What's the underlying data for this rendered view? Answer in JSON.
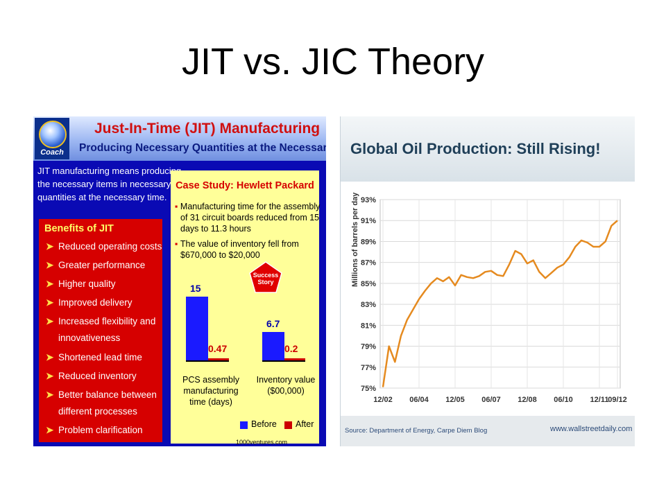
{
  "slide": {
    "title": "JIT vs. JIC Theory"
  },
  "jit": {
    "logo_label": "Coach",
    "title": "Just-In-Time (JIT) Manufacturing",
    "subtitle": "Producing Necessary Quantities at the Necessary Time",
    "definition": [
      "JIT manufacturing means producing",
      "the necessary items in necessary",
      "quantities at the necessary time."
    ],
    "benefits_title": "Benefits of JIT",
    "benefits": [
      "Reduced operating costs",
      "Greater performance",
      "Higher quality",
      "Improved delivery",
      "Increased flexibility and",
      "innovativeness",
      "Shortened lead time",
      "Reduced inventory",
      "Better balance between",
      "different processes",
      "Problem clarification"
    ],
    "case": {
      "title": "Case Study: Hewlett Packard",
      "bullet1": [
        "Manufacturing time for the assembly",
        "of 31 circuit boards reduced from 15",
        "days to 11.3 hours"
      ],
      "bullet2": [
        "The value of inventory fell from",
        "$670,000 to $20,000"
      ],
      "badge": [
        "Success",
        "Story"
      ]
    },
    "bars": [
      {
        "before_label": "15",
        "before": 15,
        "after_label": "0.47",
        "after": 0.47,
        "caption": [
          "PCS assembly",
          "manufacturing",
          "time (days)"
        ]
      },
      {
        "before_label": "6.7",
        "before": 6.7,
        "after_label": "0.2",
        "after": 0.2,
        "caption": [
          "Inventory value",
          "($00,000)"
        ]
      }
    ],
    "legend": {
      "before": "Before",
      "after": "After"
    },
    "colors": {
      "before": "#1a1aff",
      "after": "#cc0000"
    },
    "source": "1000ventures.com"
  },
  "chart_data": {
    "type": "line",
    "title": "Global Oil Production: Still Rising!",
    "ylabel": "Millions of barrels per day",
    "ylim": [
      75,
      93
    ],
    "yticks": [
      "93%",
      "91%",
      "89%",
      "87%",
      "85%",
      "83%",
      "81%",
      "79%",
      "77%",
      "75%"
    ],
    "xticks": [
      "12/02",
      "06/04",
      "12/05",
      "06/07",
      "12/08",
      "06/10",
      "12/11",
      "09/12"
    ],
    "x": [
      "12/02",
      "03/03",
      "06/03",
      "09/03",
      "12/03",
      "03/04",
      "06/04",
      "09/04",
      "12/04",
      "03/05",
      "06/05",
      "09/05",
      "12/05",
      "03/06",
      "06/06",
      "09/06",
      "12/06",
      "03/07",
      "06/07",
      "09/07",
      "12/07",
      "03/08",
      "06/08",
      "09/08",
      "12/08",
      "03/09",
      "06/09",
      "09/09",
      "12/09",
      "03/10",
      "06/10",
      "09/10",
      "12/10",
      "03/11",
      "06/11",
      "09/11",
      "12/11",
      "03/12",
      "06/12",
      "09/12"
    ],
    "series": [
      {
        "color": "#e58a1f",
        "values": [
          75.1,
          79,
          77.5,
          80,
          81.5,
          82.5,
          83.5,
          84.3,
          85,
          85.5,
          85.2,
          85.6,
          84.8,
          85.8,
          85.6,
          85.5,
          85.7,
          86.1,
          86.2,
          85.8,
          85.7,
          86.8,
          88.1,
          87.8,
          86.9,
          87.2,
          86.1,
          85.5,
          86.0,
          86.5,
          86.8,
          87.5,
          88.5,
          89.1,
          88.9,
          88.5,
          88.5,
          89,
          90.5,
          91
        ]
      }
    ],
    "source": "Source: Department of Energy, Carpe Diem Blog",
    "site": "www.wallstreetdaily.com",
    "grid": true
  }
}
